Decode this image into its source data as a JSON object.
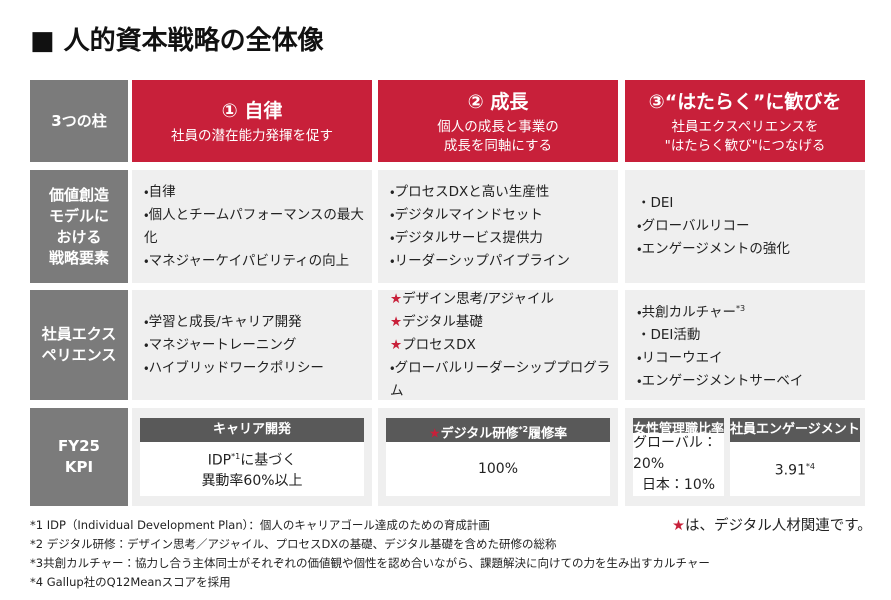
{
  "title": "■ 人的資本戦略の全体像",
  "row_labels": [
    [
      "3つの柱"
    ],
    [
      "価値創造",
      "モデルに",
      "おける",
      "戦略要素"
    ],
    [
      "社員エクス",
      "ペリエンス"
    ],
    [
      "FY25",
      "KPI"
    ]
  ],
  "pillars": [
    {
      "title": "① 自律",
      "desc": [
        "社員の潜在能力発揮を促す"
      ]
    },
    {
      "title": "② 成長",
      "desc": [
        "個人の成長と事業の",
        "成長を同軸にする"
      ]
    },
    {
      "title": "③“はたらく”に歓びを",
      "desc": [
        "社員エクスペリエンスを",
        "\"はたらく歓び\"につなげる"
      ]
    }
  ],
  "strategy": [
    [
      [
        {
          "mark": "・",
          "text": "自律"
        }
      ],
      [
        {
          "mark": "・",
          "text": "個人とチームパフォーマンスの最大化"
        }
      ],
      [
        {
          "mark": "・",
          "text": "マネジャーケイパビリティの向上"
        }
      ]
    ],
    [
      [
        {
          "mark": "・",
          "text": "プロセスDXと高い生産性"
        }
      ],
      [
        {
          "mark": "・",
          "text": "デジタルマインドセット"
        }
      ],
      [
        {
          "mark": "・",
          "text": "デジタルサービス提供力"
        }
      ],
      [
        {
          "mark": "・",
          "text": "リーダーシップパイプライン"
        }
      ]
    ],
    [
      [
        {
          "mark": "・",
          "text": "DEI"
        }
      ],
      [
        {
          "mark": "・",
          "text": "グローバルリコー"
        }
      ],
      [
        {
          "mark": "・",
          "text": "エンゲージメントの強化"
        }
      ]
    ]
  ],
  "experience": [
    [
      [
        {
          "mark": "・",
          "text": "学習と成長/キャリア開発"
        }
      ],
      [
        {
          "mark": "・",
          "text": "マネジャートレーニング"
        }
      ],
      [
        {
          "mark": "・",
          "text": "ハイブリッドワークポリシー"
        }
      ]
    ],
    [
      [
        {
          "star": "★",
          "text": "デザイン思考/アジャイル"
        }
      ],
      [
        {
          "star": "★",
          "text": "デジタル基礎"
        }
      ],
      [
        {
          "star": "★",
          "text": "プロセスDX"
        }
      ],
      [
        {
          "mark": "・",
          "text": "グローバルリーダーシッププログラム"
        }
      ]
    ],
    [
      [
        {
          "mark": "・",
          "text": "共創カルチャー",
          "sup": "*3"
        }
      ],
      [
        {
          "mark": "・",
          "text": "DEI活動"
        }
      ],
      [
        {
          "mark": "・",
          "text": "リコーウエイ"
        }
      ],
      [
        {
          "mark": "・",
          "text": "エンゲージメントサーベイ"
        }
      ]
    ]
  ],
  "kpi": [
    [
      {
        "header": [
          {
            "text": "キャリア開発"
          }
        ],
        "body": [
          [
            {
              "text": "IDP",
              "sup": "*1"
            },
            {
              "text": "に基づく"
            }
          ],
          [
            {
              "text": "異動率60%以上"
            }
          ]
        ]
      }
    ],
    [
      {
        "header": [
          {
            "star": "★",
            "text": "デジタル研修",
            "sup": "*2"
          },
          {
            "text": "履修率"
          }
        ],
        "body": [
          [
            {
              "text": "100%"
            }
          ]
        ]
      }
    ],
    [
      {
        "header": [
          {
            "text": "女性管理職比率"
          }
        ],
        "body": [
          [
            {
              "text": "グローバル：20%"
            }
          ],
          [
            {
              "text": "日本：10%"
            }
          ]
        ]
      },
      {
        "header": [
          {
            "text": "社員エンゲージメント"
          }
        ],
        "body": [
          [
            {
              "text": "3.91",
              "sup": "*4"
            }
          ]
        ]
      }
    ]
  ],
  "footnotes": [
    "*1 IDP（Individual Development Plan）：個人のキャリアゴール達成のための育成計画",
    "*2 デジタル研修：デザイン思考／アジャイル、プロセスDXの基礎、デジタル基礎を含めた研修の総称",
    "*3共創カルチャー：協力し合う主体同士がそれぞれの価値観や個性を認め合いながら、課題解決に向けての力を生み出すカルチャー",
    "*4 Gallup社のQ12Meanスコアを採用"
  ],
  "legend": [
    {
      "star": "★",
      "text": "は、デジタル人材関連です。"
    }
  ]
}
